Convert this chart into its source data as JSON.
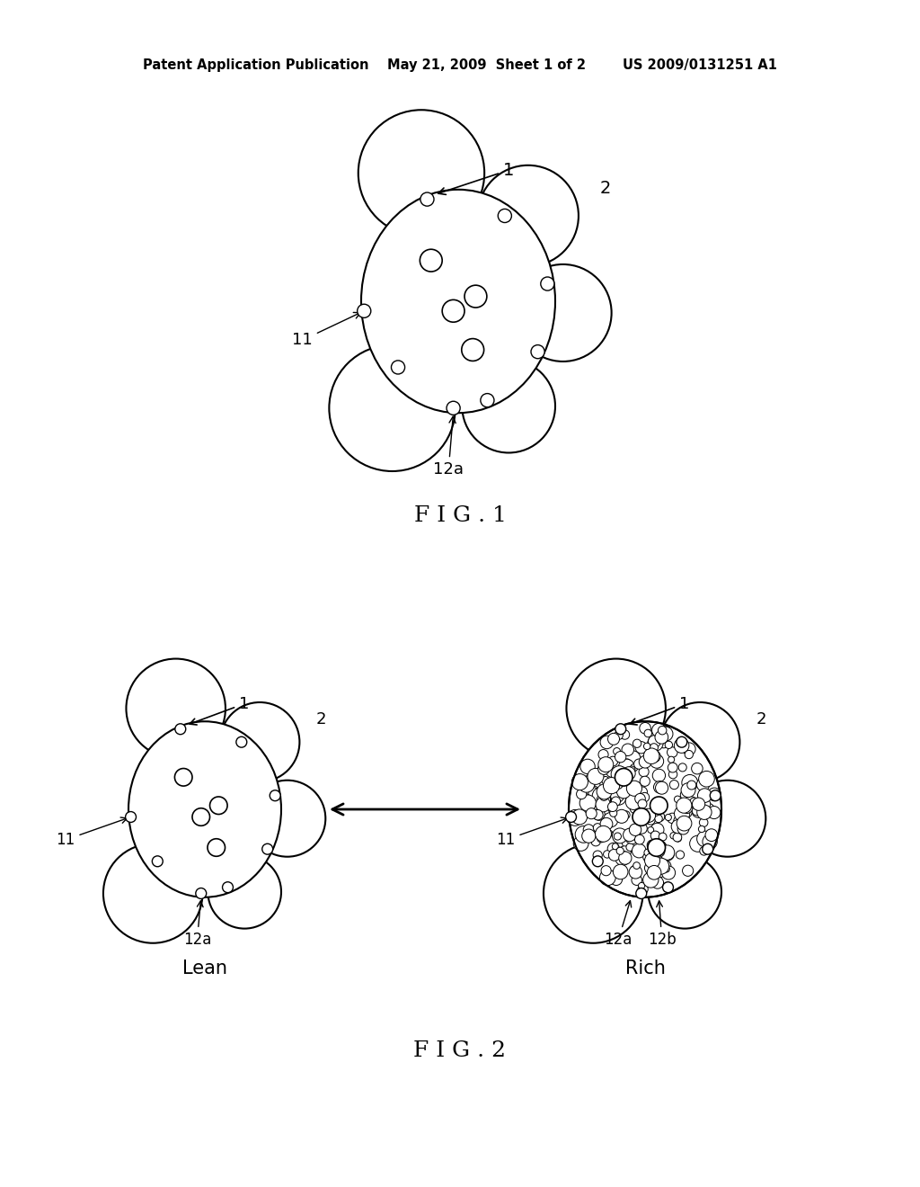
{
  "background_color": "#ffffff",
  "line_color": "#000000",
  "line_width": 1.5,
  "header": "Patent Application Publication    May 21, 2009  Sheet 1 of 2        US 2009/0131251 A1",
  "fig1_caption": "F I G . 1",
  "fig2_caption": "F I G . 2",
  "lean_label": "Lean",
  "rich_label": "Rich"
}
